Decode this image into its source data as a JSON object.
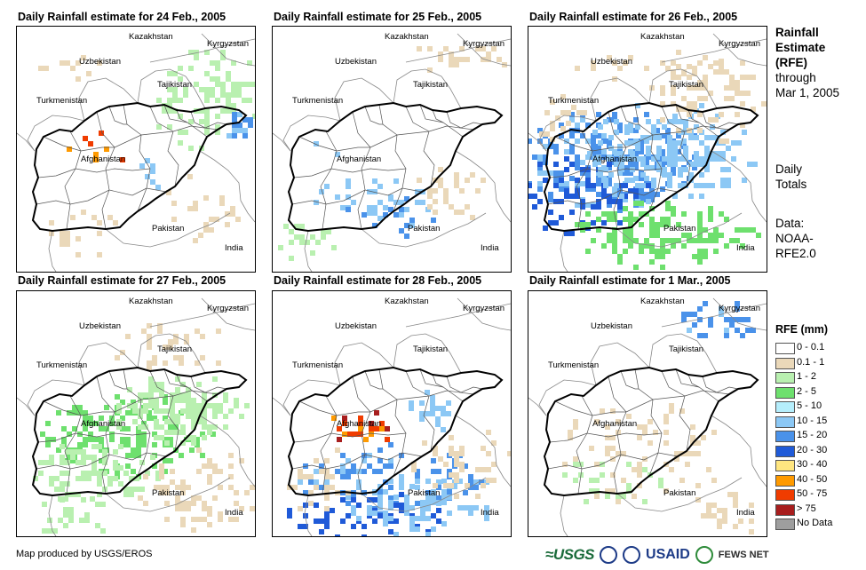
{
  "panels": [
    {
      "title": "Daily Rainfall estimate for 24 Feb., 2005"
    },
    {
      "title": "Daily Rainfall estimate for 25 Feb., 2005"
    },
    {
      "title": "Daily Rainfall estimate for 26 Feb., 2005"
    },
    {
      "title": "Daily Rainfall estimate for 27 Feb., 2005"
    },
    {
      "title": "Daily Rainfall estimate for 28 Feb., 2005"
    },
    {
      "title": "Daily Rainfall estimate for 1 Mar., 2005"
    }
  ],
  "map_labels": {
    "kazakhstan": "Kazakhstan",
    "kyrgyzstan": "Kyrgyzstan",
    "uzbekistan": "Uzbekistan",
    "tajikistan": "Tajikistan",
    "turkmenistan": "Turkmenistan",
    "afghanistan": "Afghanistan",
    "pakistan": "Pakistan",
    "india": "India"
  },
  "side_text": {
    "heading_line1": "Rainfall",
    "heading_line2": "Estimate",
    "heading_line3": "(RFE)",
    "through_line1": "through",
    "through_line2": "Mar 1, 2005",
    "daily_line1": "Daily",
    "daily_line2": "Totals",
    "data_line1": "Data:",
    "data_line2": "NOAA-",
    "data_line3": "RFE2.0"
  },
  "legend": {
    "title": "RFE (mm)",
    "items": [
      {
        "label": "0 - 0.1",
        "color": "#ffffff"
      },
      {
        "label": "0.1 - 1",
        "color": "#ead8b9"
      },
      {
        "label": "1 - 2",
        "color": "#b9f0b0"
      },
      {
        "label": "2 - 5",
        "color": "#6ee06e"
      },
      {
        "label": "5 - 10",
        "color": "#b5eefc"
      },
      {
        "label": "10 - 15",
        "color": "#8cc8f5"
      },
      {
        "label": "15 - 20",
        "color": "#4a92ea"
      },
      {
        "label": "20 - 30",
        "color": "#1f5ad8"
      },
      {
        "label": "30 - 40",
        "color": "#ffe680"
      },
      {
        "label": "40 - 50",
        "color": "#ff9a00"
      },
      {
        "label": "50 - 75",
        "color": "#f03c00"
      },
      {
        "label": "> 75",
        "color": "#a81e1e"
      },
      {
        "label": "No Data",
        "color": "#9e9e9e"
      }
    ]
  },
  "credit": "Map produced by USGS/EROS",
  "logos": {
    "usgs": "≈USGS",
    "usaid": "USAID",
    "fews": "FEWS NET"
  },
  "rain_intensity": [
    {
      "tan": 0.18,
      "green": 0.1,
      "blue": 0.04,
      "red": 0.02
    },
    {
      "tan": 0.2,
      "green": 0.12,
      "blue": 0.04,
      "red": 0.0
    },
    {
      "tan": 0.25,
      "green": 0.35,
      "blue": 0.35,
      "red": 0.0
    },
    {
      "tan": 0.35,
      "green": 0.45,
      "blue": 0.02,
      "red": 0.0
    },
    {
      "tan": 0.25,
      "green": 0.25,
      "blue": 0.28,
      "red": 0.04
    },
    {
      "tan": 0.2,
      "green": 0.05,
      "blue": 0.01,
      "red": 0.0
    }
  ]
}
